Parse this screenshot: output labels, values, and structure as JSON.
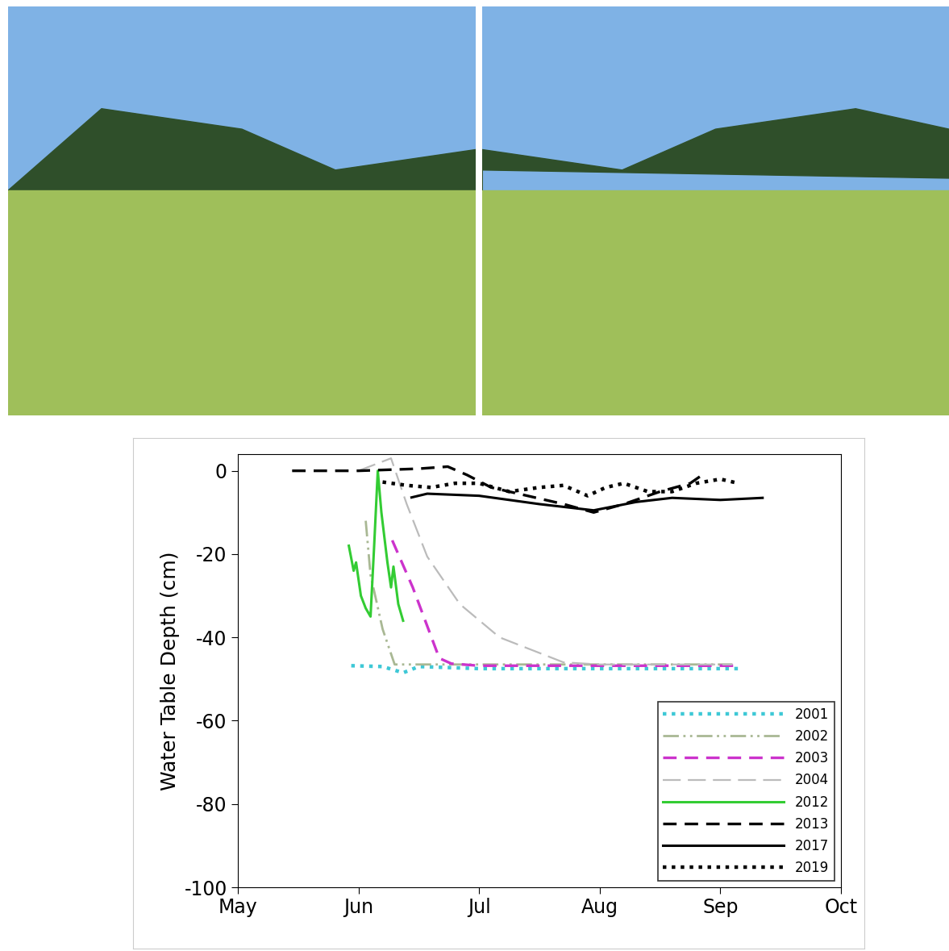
{
  "chart_data": {
    "type": "line",
    "ylabel": "Water Table Depth (cm)",
    "xlim": [
      5,
      10
    ],
    "xticks": [
      {
        "value": 5,
        "label": "May"
      },
      {
        "value": 6,
        "label": "Jun"
      },
      {
        "value": 7,
        "label": "Jul"
      },
      {
        "value": 8,
        "label": "Aug"
      },
      {
        "value": 9,
        "label": "Sep"
      },
      {
        "value": 10,
        "label": "Oct"
      }
    ],
    "ylim": [
      -100,
      4
    ],
    "yticks": [
      0,
      -20,
      -40,
      -60,
      -80,
      -100
    ],
    "legend": "lower right",
    "grid": false,
    "series": [
      {
        "name": "2001",
        "color": "#3ec8d6",
        "line_style": "dotted",
        "x": [
          5.94,
          6.2,
          6.37,
          6.5,
          7.0,
          8.0,
          9.16
        ],
        "values": [
          -46.8,
          -47,
          -48.5,
          -47,
          -47.5,
          -47.5,
          -47.5
        ]
      },
      {
        "name": "2002",
        "color": "#a9b894",
        "line_style": "dashdotdot",
        "x": [
          6.06,
          6.1,
          6.2,
          6.3,
          6.5,
          7.0,
          8.0,
          9.1
        ],
        "values": [
          -12,
          -25,
          -38,
          -46.5,
          -46.5,
          -46.5,
          -46.5,
          -46.5
        ]
      },
      {
        "name": "2003",
        "color": "#cc33cc",
        "line_style": "dashed",
        "x": [
          6.28,
          6.45,
          6.67,
          6.77,
          7.0,
          8.0,
          9.16
        ],
        "values": [
          -16.7,
          -28,
          -45,
          -46.3,
          -46.8,
          -46.8,
          -46.8
        ]
      },
      {
        "name": "2004",
        "color": "#bbbbbb",
        "line_style": "longdash",
        "x": [
          6.0,
          6.27,
          6.4,
          6.57,
          6.84,
          7.17,
          7.7,
          8.0,
          9.1
        ],
        "values": [
          0,
          3,
          -8,
          -20.6,
          -32,
          -40,
          -46,
          -46.5,
          -46.5
        ]
      },
      {
        "name": "2012",
        "color": "#33cc33",
        "line_style": "solid",
        "x": [
          5.92,
          5.96,
          5.98,
          6.02,
          6.06,
          6.1,
          6.13,
          6.16,
          6.19,
          6.24,
          6.27,
          6.29,
          6.33,
          6.37
        ],
        "values": [
          -18,
          -24,
          -22,
          -30,
          -33,
          -35,
          -18,
          0,
          -10,
          -22,
          -28,
          -23,
          -32,
          -36
        ]
      },
      {
        "name": "2013",
        "color": "#000000",
        "line_style": "dashed",
        "x": [
          5.45,
          6.0,
          6.5,
          6.74,
          6.9,
          7.1,
          7.4,
          7.7,
          7.95,
          8.2,
          8.5,
          8.75,
          8.85
        ],
        "values": [
          0,
          0,
          0.5,
          1,
          -1,
          -4,
          -6,
          -8,
          -10,
          -8,
          -5,
          -3,
          -1
        ]
      },
      {
        "name": "2017",
        "color": "#000000",
        "line_style": "solid",
        "x": [
          6.44,
          6.57,
          7.0,
          7.5,
          7.95,
          8.3,
          8.6,
          9.0,
          9.35
        ],
        "values": [
          -6.4,
          -5.5,
          -6,
          -8,
          -9.5,
          -7.5,
          -6.5,
          -7,
          -6.5
        ]
      },
      {
        "name": "2019",
        "color": "#000000",
        "line_style": "dotted",
        "x": [
          6.2,
          6.4,
          6.6,
          6.8,
          7.0,
          7.25,
          7.5,
          7.7,
          7.9,
          8.05,
          8.2,
          8.4,
          8.6,
          8.8,
          9.0,
          9.15
        ],
        "values": [
          -2.7,
          -3.5,
          -4,
          -3,
          -3,
          -5,
          -4,
          -3.5,
          -6,
          -4,
          -3,
          -5,
          -5,
          -3,
          -2,
          -3
        ]
      }
    ]
  }
}
